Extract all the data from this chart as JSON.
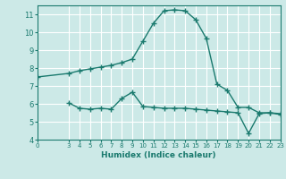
{
  "upper_x": [
    0,
    3,
    4,
    5,
    6,
    7,
    8,
    9,
    10,
    11,
    12,
    13,
    14,
    15,
    16,
    17,
    18,
    19,
    20,
    21,
    22,
    23
  ],
  "upper_y": [
    7.5,
    7.7,
    7.85,
    7.95,
    8.05,
    8.15,
    8.3,
    8.5,
    9.5,
    10.5,
    11.2,
    11.25,
    11.2,
    10.7,
    9.65,
    7.1,
    6.75,
    5.8,
    5.8,
    5.5,
    5.5,
    5.4
  ],
  "lower_x": [
    3,
    4,
    5,
    6,
    7,
    8,
    9,
    10,
    11,
    12,
    13,
    14,
    15,
    16,
    17,
    18,
    19,
    20,
    21,
    22,
    23
  ],
  "lower_y": [
    6.05,
    5.75,
    5.7,
    5.75,
    5.7,
    6.3,
    6.65,
    5.85,
    5.8,
    5.75,
    5.75,
    5.75,
    5.7,
    5.65,
    5.6,
    5.55,
    5.5,
    4.35,
    5.45,
    5.5,
    5.45
  ],
  "line_color": "#1a7a6e",
  "bg_color": "#cce9e7",
  "grid_color": "#ffffff",
  "xlabel": "Humidex (Indice chaleur)",
  "xlim": [
    0,
    23
  ],
  "ylim": [
    4,
    11.5
  ],
  "yticks": [
    4,
    5,
    6,
    7,
    8,
    9,
    10,
    11
  ],
  "xticks": [
    0,
    3,
    4,
    5,
    6,
    7,
    8,
    9,
    10,
    11,
    12,
    13,
    14,
    15,
    16,
    17,
    18,
    19,
    20,
    21,
    22,
    23
  ]
}
